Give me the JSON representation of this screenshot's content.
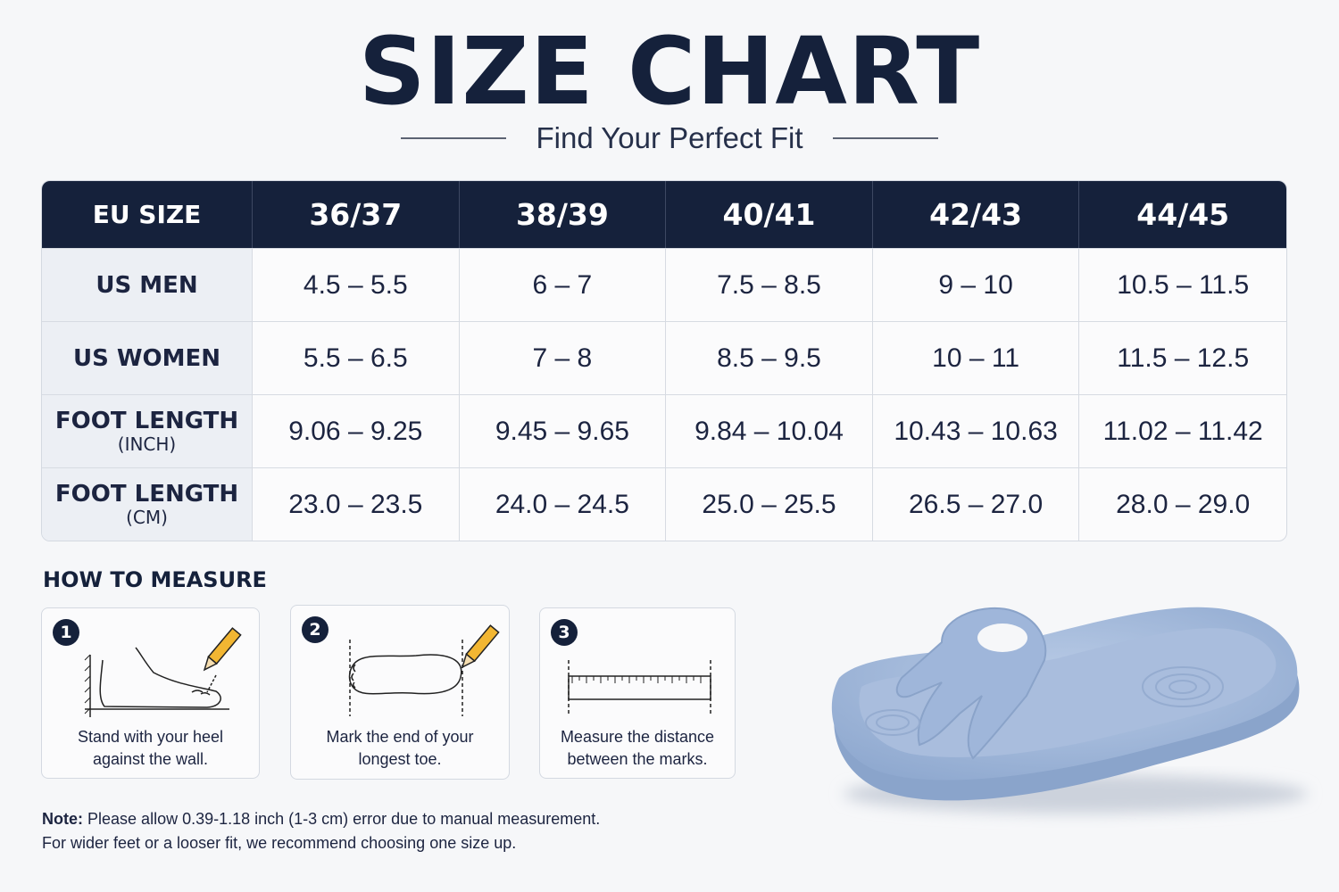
{
  "header": {
    "title": "SIZE CHART",
    "subtitle": "Find Your Perfect Fit"
  },
  "table": {
    "header": [
      "EU SIZE",
      "36/37",
      "38/39",
      "40/41",
      "42/43",
      "44/45"
    ],
    "rows": [
      {
        "label": "US MEN",
        "cells": [
          "4.5 – 5.5",
          "6 – 7",
          "7.5 – 8.5",
          "9 – 10",
          "10.5 – 11.5"
        ]
      },
      {
        "label": "US WOMEN",
        "cells": [
          "5.5 – 6.5",
          "7 – 8",
          "8.5 – 9.5",
          "10 – 11",
          "11.5 – 12.5"
        ]
      },
      {
        "label": "FOOT LENGTH",
        "unit": "(INCH)",
        "cells": [
          "9.06 – 9.25",
          "9.45 – 9.65",
          "9.84 – 10.04",
          "10.43 – 10.63",
          "11.02 – 11.42"
        ]
      },
      {
        "label": "FOOT LENGTH",
        "unit": "(CM)",
        "cells": [
          "23.0 – 23.5",
          "24.0 – 24.5",
          "25.0 – 25.5",
          "26.5 – 27.0",
          "28.0 – 29.0"
        ]
      }
    ]
  },
  "how_to_measure": {
    "title": "HOW TO MEASURE",
    "steps": [
      {
        "number": "1",
        "caption": [
          "Stand with your heel",
          "against the wall."
        ]
      },
      {
        "number": "2",
        "caption": [
          "Mark the end of your",
          "longest toe."
        ]
      },
      {
        "number": "3",
        "caption": [
          "Measure the distance",
          "between the marks."
        ]
      }
    ]
  },
  "note": {
    "label": "Note:",
    "lines": [
      "Please allow 0.39-1.18 inch (1-3 cm) error due to manual measurement.",
      "For wider feet or a looser fit, we recommend choosing one size up."
    ]
  }
}
